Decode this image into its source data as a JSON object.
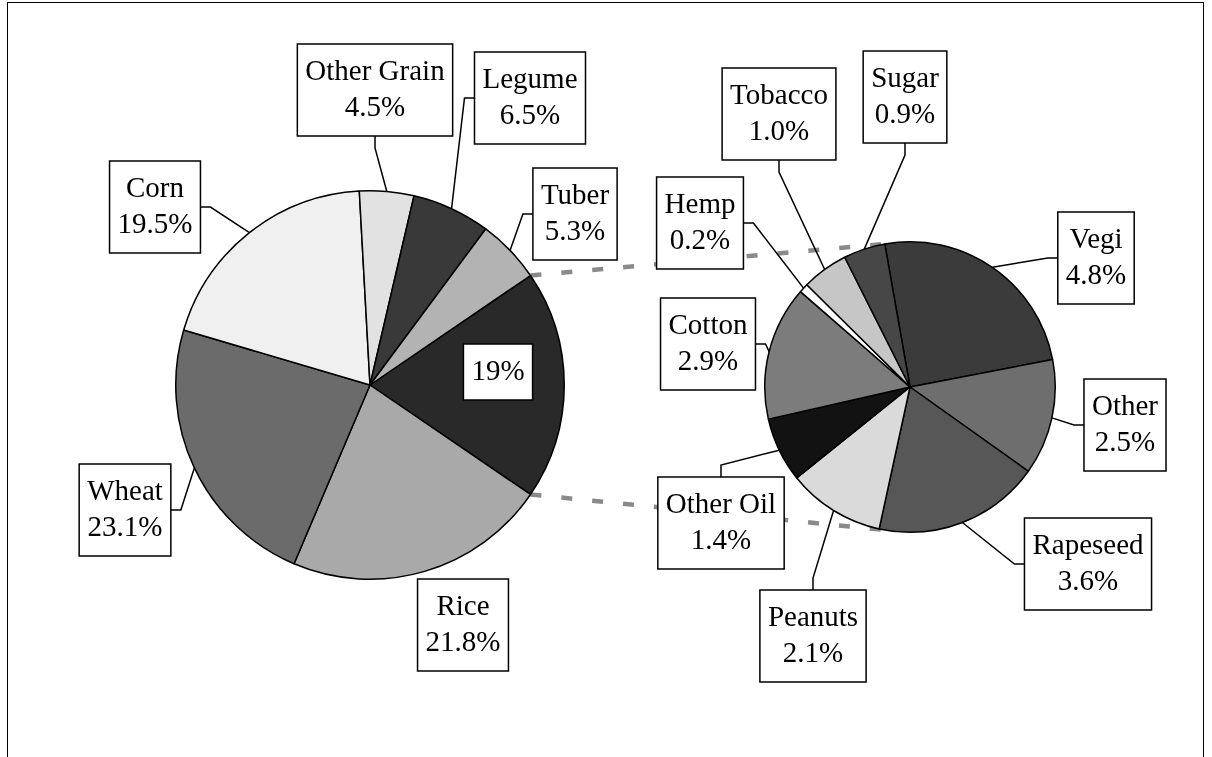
{
  "chart_data": [
    {
      "type": "pie",
      "categories": [
        null,
        "Rice",
        "Wheat",
        "Corn",
        "Other Grain",
        "Legume",
        "Tuber"
      ],
      "values": [
        19,
        21.8,
        23.1,
        19.5,
        4.5,
        6.5,
        5.3
      ],
      "value_labels": [
        "19%",
        "21.8%",
        "23.1%",
        "19.5%",
        "4.5%",
        "6.5%",
        "5.3%"
      ],
      "colors": [
        "#292929",
        "#a9a9a9",
        "#6b6b6b",
        "#f0f0f0",
        "#e2e2e2",
        "#393939",
        "#b3b3b3"
      ]
    },
    {
      "type": "pie",
      "categories": [
        "Vegi",
        "Other",
        "Rapeseed",
        "Peanuts",
        "Other Oil",
        "Cotton",
        "Hemp",
        "Tobacco",
        "Sugar"
      ],
      "values": [
        4.8,
        2.5,
        3.6,
        2.1,
        1.4,
        2.9,
        0.2,
        1.0,
        0.9
      ],
      "value_labels": [
        "4.8%",
        "2.5%",
        "3.6%",
        "2.1%",
        "1.4%",
        "2.9%",
        "0.2%",
        "1.0%",
        "0.9%"
      ],
      "colors": [
        "#3b3b3b",
        "#6e6e6e",
        "#575757",
        "#dadada",
        "#121212",
        "#7c7c7c",
        "#ffffff",
        "#c6c6c6",
        "#474747"
      ]
    }
  ]
}
